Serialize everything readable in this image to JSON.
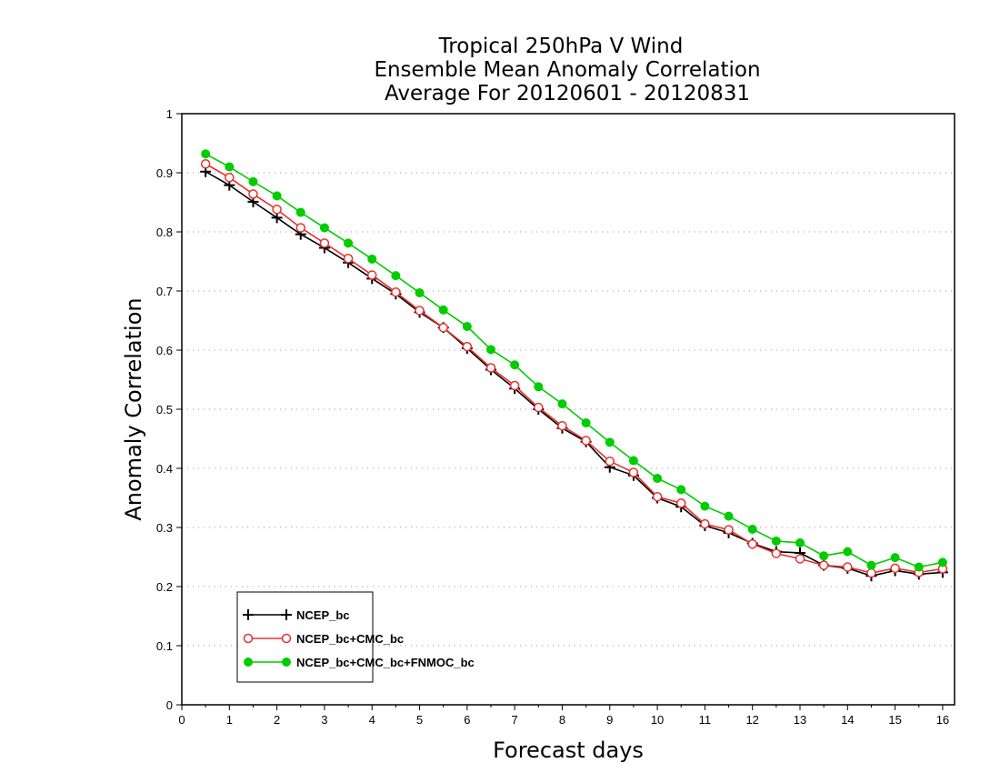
{
  "chart_data": {
    "type": "line",
    "title": [
      "Tropical 250hPa V Wind",
      "Ensemble Mean Anomaly Correlation",
      "Average For 20120601 - 20120831"
    ],
    "xlabel": "Forecast days",
    "ylabel": "Anomaly Correlation",
    "xlim": [
      0,
      16.25
    ],
    "ylim": [
      0,
      1
    ],
    "xticks": [
      "0",
      "1",
      "2",
      "3",
      "4",
      "5",
      "6",
      "7",
      "8",
      "9",
      "10",
      "11",
      "12",
      "13",
      "14",
      "15",
      "16"
    ],
    "yticks": [
      "0",
      "0.1",
      "0.2",
      "0.3",
      "0.4",
      "0.5",
      "0.6",
      "0.7",
      "0.8",
      "0.9",
      "1"
    ],
    "grid": true,
    "legend_position": "bottom-left",
    "x": [
      0.5,
      1,
      1.5,
      2,
      2.5,
      3,
      3.5,
      4,
      4.5,
      5,
      5.5,
      6,
      6.5,
      7,
      7.5,
      8,
      8.5,
      9,
      9.5,
      10,
      10.5,
      11,
      11.5,
      12,
      12.5,
      13,
      13.5,
      14,
      14.5,
      15,
      15.5,
      16
    ],
    "series": [
      {
        "name": "NCEP_bc",
        "color": "#000000",
        "marker": "plus",
        "values": [
          0.902,
          0.879,
          0.851,
          0.824,
          0.796,
          0.773,
          0.748,
          0.721,
          0.695,
          0.664,
          0.638,
          0.603,
          0.567,
          0.535,
          0.5,
          0.468,
          0.445,
          0.402,
          0.388,
          0.35,
          0.335,
          0.303,
          0.291,
          0.273,
          0.259,
          0.257,
          0.236,
          0.231,
          0.218,
          0.227,
          0.221,
          0.224
        ]
      },
      {
        "name": "NCEP_bc+CMC_bc",
        "color": "#e83030",
        "marker": "circle-open",
        "values": [
          0.915,
          0.892,
          0.864,
          0.838,
          0.807,
          0.781,
          0.755,
          0.727,
          0.698,
          0.667,
          0.638,
          0.606,
          0.57,
          0.54,
          0.503,
          0.472,
          0.447,
          0.412,
          0.393,
          0.352,
          0.341,
          0.306,
          0.296,
          0.272,
          0.256,
          0.247,
          0.236,
          0.233,
          0.223,
          0.231,
          0.224,
          0.23
        ]
      },
      {
        "name": "NCEP_bc+CMC_bc+FNMOC_bc",
        "color": "#00cc00",
        "marker": "circle-filled",
        "values": [
          0.932,
          0.91,
          0.885,
          0.861,
          0.833,
          0.807,
          0.781,
          0.754,
          0.726,
          0.697,
          0.668,
          0.64,
          0.601,
          0.575,
          0.538,
          0.509,
          0.477,
          0.444,
          0.413,
          0.383,
          0.364,
          0.336,
          0.319,
          0.297,
          0.277,
          0.274,
          0.252,
          0.259,
          0.236,
          0.249,
          0.233,
          0.241
        ]
      }
    ]
  }
}
